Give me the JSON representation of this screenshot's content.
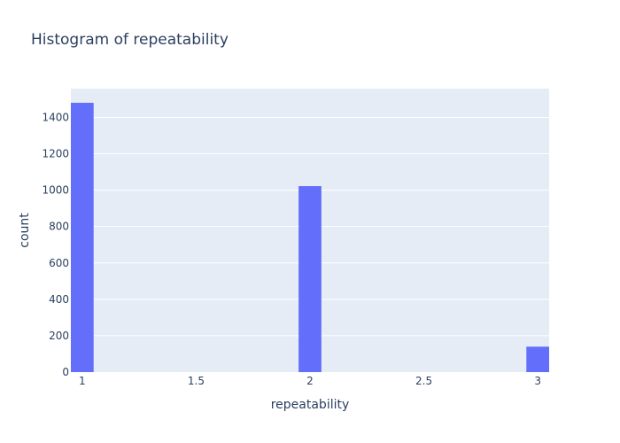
{
  "chart_data": {
    "type": "bar",
    "title": "Histogram of repeatability",
    "xlabel": "repeatability",
    "ylabel": "count",
    "bins": [
      {
        "x0": 0.95,
        "x1": 1.05,
        "count": 1480
      },
      {
        "x0": 1.95,
        "x1": 2.05,
        "count": 1022
      },
      {
        "x0": 2.95,
        "x1": 3.05,
        "count": 140
      }
    ],
    "xlim": [
      0.95,
      3.05
    ],
    "ylim": [
      0,
      1558
    ],
    "x_ticks": [
      1,
      1.5,
      2,
      2.5,
      3
    ],
    "x_tick_labels": [
      "1",
      "1.5",
      "2",
      "2.5",
      "3"
    ],
    "y_ticks": [
      0,
      200,
      400,
      600,
      800,
      1000,
      1200,
      1400
    ],
    "y_tick_labels": [
      "0",
      "200",
      "400",
      "600",
      "800",
      "1000",
      "1200",
      "1400"
    ],
    "grid": true,
    "colors": {
      "bar": "#636efa",
      "plot_bg": "#e5ecf6",
      "grid": "#ffffff",
      "text": "#2a3f5f"
    }
  }
}
